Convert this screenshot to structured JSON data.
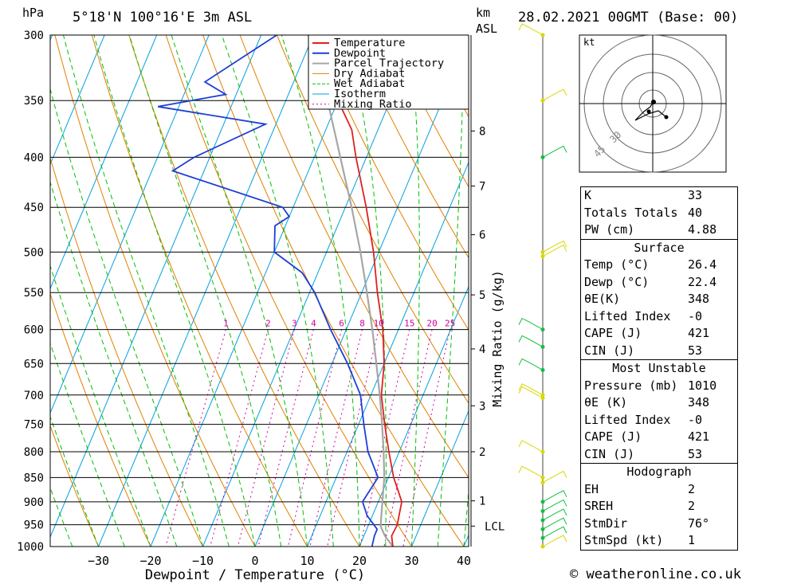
{
  "header": {
    "hpa_label": "hPa",
    "location": "5°18'N 100°16'E 3m ASL",
    "km_label": "km",
    "asl_label": "ASL",
    "datetime": "28.02.2021 00GMT (Base: 00)"
  },
  "chart_data": {
    "type": "skew-T log-P",
    "xlabel": "Dewpoint / Temperature (°C)",
    "ylabel": "hPa",
    "right_axis_label": "Mixing Ratio (g/kg)",
    "x_ticks": [
      -30,
      -20,
      -10,
      0,
      10,
      20,
      30,
      40
    ],
    "pressure_levels": [
      300,
      350,
      400,
      450,
      500,
      550,
      600,
      650,
      700,
      750,
      800,
      850,
      900,
      950,
      1000
    ],
    "km_ticks": [
      {
        "label": "8",
        "p": 376
      },
      {
        "label": "7",
        "p": 428
      },
      {
        "label": "6",
        "p": 480
      },
      {
        "label": "5",
        "p": 553
      },
      {
        "label": "4",
        "p": 628
      },
      {
        "label": "3",
        "p": 718
      },
      {
        "label": "2",
        "p": 800
      },
      {
        "label": "1",
        "p": 898
      },
      {
        "label": "LCL",
        "p": 953
      }
    ],
    "mixing_ratio_labels": [
      "1",
      "2",
      "3",
      "4",
      "6",
      "8",
      "10",
      "15",
      "20",
      "25"
    ],
    "legend": [
      "Temperature",
      "Dewpoint",
      "Parcel Trajectory",
      "Dry Adiabat",
      "Wet Adiabat",
      "Isotherm",
      "Mixing Ratio"
    ],
    "series": [
      {
        "name": "Temperature",
        "color": "#e02020",
        "points": [
          [
            1000,
            26.4
          ],
          [
            975,
            25.3
          ],
          [
            950,
            25.5
          ],
          [
            925,
            25.0
          ],
          [
            900,
            24.5
          ],
          [
            875,
            22.8
          ],
          [
            850,
            21.0
          ],
          [
            800,
            18.0
          ],
          [
            750,
            15.0
          ],
          [
            700,
            12.0
          ],
          [
            650,
            10.0
          ],
          [
            600,
            7.0
          ],
          [
            550,
            3.0
          ],
          [
            500,
            -1.0
          ],
          [
            450,
            -6.0
          ],
          [
            400,
            -12.0
          ],
          [
            375,
            -15.0
          ],
          [
            350,
            -20.0
          ],
          [
            320,
            -26.0
          ],
          [
            300,
            -31.0
          ]
        ]
      },
      {
        "name": "Dewpoint",
        "color": "#1c3fd6",
        "points": [
          [
            1000,
            22.4
          ],
          [
            975,
            22.0
          ],
          [
            960,
            22.0
          ],
          [
            950,
            21.0
          ],
          [
            930,
            19.0
          ],
          [
            900,
            17.0
          ],
          [
            850,
            18.0
          ],
          [
            800,
            14.0
          ],
          [
            750,
            11.0
          ],
          [
            700,
            8.0
          ],
          [
            650,
            3.0
          ],
          [
            600,
            -3.0
          ],
          [
            550,
            -9.0
          ],
          [
            525,
            -13.0
          ],
          [
            500,
            -20.0
          ],
          [
            470,
            -22.0
          ],
          [
            460,
            -20.0
          ],
          [
            450,
            -22.0
          ],
          [
            413,
            -46.0
          ],
          [
            400,
            -43.0
          ],
          [
            370,
            -32.0
          ],
          [
            355,
            -54.0
          ],
          [
            345,
            -42.0
          ],
          [
            335,
            -47.0
          ],
          [
            300,
            -37.0
          ]
        ]
      },
      {
        "name": "Parcel Trajectory",
        "color": "#a6a6a6",
        "points": [
          [
            1000,
            26.4
          ],
          [
            975,
            24.0
          ],
          [
            953,
            22.4
          ],
          [
            900,
            20.8
          ],
          [
            850,
            19.2
          ],
          [
            800,
            17.0
          ],
          [
            750,
            14.5
          ],
          [
            700,
            11.7
          ],
          [
            650,
            8.5
          ],
          [
            600,
            5.0
          ],
          [
            550,
            1.0
          ],
          [
            500,
            -3.5
          ],
          [
            450,
            -8.8
          ],
          [
            400,
            -15.0
          ],
          [
            350,
            -22.0
          ]
        ]
      }
    ]
  },
  "hodograph": {
    "unit_label": "kt",
    "ring_labels": [
      "30",
      "45"
    ]
  },
  "indices": {
    "k_label": "K",
    "k": "33",
    "tt_label": "Totals Totals",
    "tt": "40",
    "pw_label": "PW (cm)",
    "pw": "4.88",
    "surface": {
      "title": "Surface",
      "temp_label": "Temp (°C)",
      "temp": "26.4",
      "dewp_label": "Dewp (°C)",
      "dewp": "22.4",
      "thetae_label": "θE(K)",
      "thetae": "348",
      "li_label": "Lifted Index",
      "li": "-0",
      "cape_label": "CAPE (J)",
      "cape": "421",
      "cin_label": "CIN (J)",
      "cin": "53"
    },
    "most_unstable": {
      "title": "Most Unstable",
      "pressure_label": "Pressure (mb)",
      "pressure": "1010",
      "thetae_label": "θE (K)",
      "thetae": "348",
      "li_label": "Lifted Index",
      "li": "-0",
      "cape_label": "CAPE (J)",
      "cape": "421",
      "cin_label": "CIN (J)",
      "cin": "53"
    },
    "hodograph_section": {
      "title": "Hodograph",
      "eh_label": "EH",
      "eh": "2",
      "sreh_label": "SREH",
      "sreh": "2",
      "stmdir_label": "StmDir",
      "stmdir": "76°",
      "stmspd_label": "StmSpd (kt)",
      "stmspd": "1"
    }
  },
  "footer": {
    "copyright": "© weatheronline.co.uk"
  },
  "colors": {
    "isotherm": "#00a0e0",
    "dry_adiabat": "#e08000",
    "wet_adiabat": "#00c000",
    "mixing_ratio": "#d000a0",
    "wind_barb_yellow": "#d8d800",
    "wind_barb_green": "#10c040"
  }
}
